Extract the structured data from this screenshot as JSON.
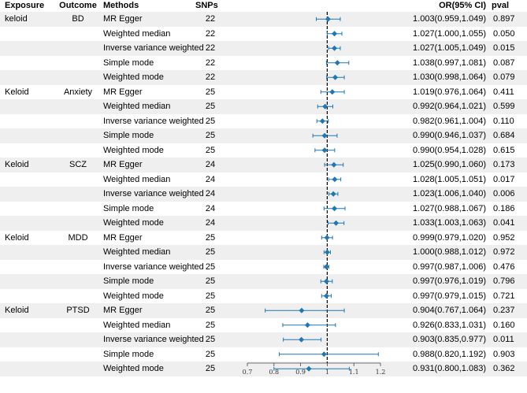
{
  "headers": {
    "exposure": "Exposure",
    "outcome": "Outcome",
    "methods": "Methods",
    "snps": "SNPs",
    "or": "OR(95% CI)",
    "pval": "pval"
  },
  "rows": [
    {
      "exposure": "keloid",
      "outcome": "BD",
      "method": "MR Egger",
      "snps": "22",
      "or_ci": "1.003(0.959,1.049)",
      "pval": "0.897"
    },
    {
      "exposure": "",
      "outcome": "",
      "method": "Weighted median",
      "snps": "22",
      "or_ci": "1.027(1.000,1.055)",
      "pval": "0.050"
    },
    {
      "exposure": "",
      "outcome": "",
      "method": "Inverse variance weighted",
      "snps": "22",
      "or_ci": "1.027(1.005,1.049)",
      "pval": "0.015"
    },
    {
      "exposure": "",
      "outcome": "",
      "method": "Simple mode",
      "snps": "22",
      "or_ci": "1.038(0.997,1.081)",
      "pval": "0.087"
    },
    {
      "exposure": "",
      "outcome": "",
      "method": "Weighted mode",
      "snps": "22",
      "or_ci": "1.030(0.998,1.064)",
      "pval": "0.079"
    },
    {
      "exposure": "Keloid",
      "outcome": "Anxiety",
      "method": "MR Egger",
      "snps": "25",
      "or_ci": "1.019(0.976,1.064)",
      "pval": "0.411"
    },
    {
      "exposure": "",
      "outcome": "",
      "method": "Weighted median",
      "snps": "25",
      "or_ci": "0.992(0.964,1.021)",
      "pval": "0.599"
    },
    {
      "exposure": "",
      "outcome": "",
      "method": "Inverse variance weighted",
      "snps": "25",
      "or_ci": "0.982(0.961,1.004)",
      "pval": "0.110"
    },
    {
      "exposure": "",
      "outcome": "",
      "method": "Simple mode",
      "snps": "25",
      "or_ci": "0.990(0.946,1.037)",
      "pval": "0.684"
    },
    {
      "exposure": "",
      "outcome": "",
      "method": "Weighted mode",
      "snps": "25",
      "or_ci": "0.990(0.954,1.028)",
      "pval": "0.615"
    },
    {
      "exposure": "Keloid",
      "outcome": "SCZ",
      "method": "MR Egger",
      "snps": "24",
      "or_ci": "1.025(0.990,1.060)",
      "pval": "0.173"
    },
    {
      "exposure": "",
      "outcome": "",
      "method": "Weighted median",
      "snps": "24",
      "or_ci": "1.028(1.005,1.051)",
      "pval": "0.017"
    },
    {
      "exposure": "",
      "outcome": "",
      "method": "Inverse variance weighted",
      "snps": "24",
      "or_ci": "1.023(1.006,1.040)",
      "pval": "0.006"
    },
    {
      "exposure": "",
      "outcome": "",
      "method": "Simple mode",
      "snps": "24",
      "or_ci": "1.027(0.988,1.067)",
      "pval": "0.186"
    },
    {
      "exposure": "",
      "outcome": "",
      "method": "Weighted mode",
      "snps": "24",
      "or_ci": "1.033(1.003,1.063)",
      "pval": "0.041"
    },
    {
      "exposure": "Keloid",
      "outcome": "MDD",
      "method": "MR Egger",
      "snps": "25",
      "or_ci": "0.999(0.979,1.020)",
      "pval": "0.952"
    },
    {
      "exposure": "",
      "outcome": "",
      "method": "Weighted median",
      "snps": "25",
      "or_ci": "1.000(0.988,1.012)",
      "pval": "0.972"
    },
    {
      "exposure": "",
      "outcome": "",
      "method": "Inverse variance weighted",
      "snps": "25",
      "or_ci": "0.997(0.987,1.006)",
      "pval": "0.476"
    },
    {
      "exposure": "",
      "outcome": "",
      "method": "Simple mode",
      "snps": "25",
      "or_ci": "0.997(0.976,1.019)",
      "pval": "0.796"
    },
    {
      "exposure": "",
      "outcome": "",
      "method": "Weighted mode",
      "snps": "25",
      "or_ci": "0.997(0.979,1.015)",
      "pval": "0.721"
    },
    {
      "exposure": "Keloid",
      "outcome": "PTSD",
      "method": "MR Egger",
      "snps": "25",
      "or_ci": "0.904(0.767,1.064)",
      "pval": "0.237"
    },
    {
      "exposure": "",
      "outcome": "",
      "method": "Weighted median",
      "snps": "25",
      "or_ci": "0.926(0.833,1.031)",
      "pval": "0.160"
    },
    {
      "exposure": "",
      "outcome": "",
      "method": "Inverse variance weighted",
      "snps": "25",
      "or_ci": "0.903(0.835,0.977)",
      "pval": "0.011"
    },
    {
      "exposure": "",
      "outcome": "",
      "method": "Simple mode",
      "snps": "25",
      "or_ci": "0.988(0.820,1.192)",
      "pval": "0.903"
    },
    {
      "exposure": "",
      "outcome": "",
      "method": "Weighted mode",
      "snps": "25",
      "or_ci": "0.931(0.800,1.083)",
      "pval": "0.362"
    }
  ],
  "chart_data": {
    "type": "forest",
    "reference_line": 1,
    "xlim": [
      0.7,
      1.2
    ],
    "xticks": [
      0.7,
      0.8,
      0.9,
      1,
      1.1,
      1.2
    ],
    "xtick_labels": [
      "0.7",
      "0.8",
      "0.9",
      "1",
      "1.1",
      "1.2"
    ],
    "point_color": "#1f77b4",
    "series": [
      {
        "or": 1.003,
        "lo": 0.959,
        "hi": 1.049
      },
      {
        "or": 1.027,
        "lo": 1.0,
        "hi": 1.055
      },
      {
        "or": 1.027,
        "lo": 1.005,
        "hi": 1.049
      },
      {
        "or": 1.038,
        "lo": 0.997,
        "hi": 1.081
      },
      {
        "or": 1.03,
        "lo": 0.998,
        "hi": 1.064
      },
      {
        "or": 1.019,
        "lo": 0.976,
        "hi": 1.064
      },
      {
        "or": 0.992,
        "lo": 0.964,
        "hi": 1.021
      },
      {
        "or": 0.982,
        "lo": 0.961,
        "hi": 1.004
      },
      {
        "or": 0.99,
        "lo": 0.946,
        "hi": 1.037
      },
      {
        "or": 0.99,
        "lo": 0.954,
        "hi": 1.028
      },
      {
        "or": 1.025,
        "lo": 0.99,
        "hi": 1.06
      },
      {
        "or": 1.028,
        "lo": 1.005,
        "hi": 1.051
      },
      {
        "or": 1.023,
        "lo": 1.006,
        "hi": 1.04
      },
      {
        "or": 1.027,
        "lo": 0.988,
        "hi": 1.067
      },
      {
        "or": 1.033,
        "lo": 1.003,
        "hi": 1.063
      },
      {
        "or": 0.999,
        "lo": 0.979,
        "hi": 1.02
      },
      {
        "or": 1.0,
        "lo": 0.988,
        "hi": 1.012
      },
      {
        "or": 0.997,
        "lo": 0.987,
        "hi": 1.006
      },
      {
        "or": 0.997,
        "lo": 0.976,
        "hi": 1.019
      },
      {
        "or": 0.997,
        "lo": 0.979,
        "hi": 1.015
      },
      {
        "or": 0.904,
        "lo": 0.767,
        "hi": 1.064
      },
      {
        "or": 0.926,
        "lo": 0.833,
        "hi": 1.031
      },
      {
        "or": 0.903,
        "lo": 0.835,
        "hi": 0.977
      },
      {
        "or": 0.988,
        "lo": 0.82,
        "hi": 1.192
      },
      {
        "or": 0.931,
        "lo": 0.8,
        "hi": 1.083
      }
    ]
  }
}
